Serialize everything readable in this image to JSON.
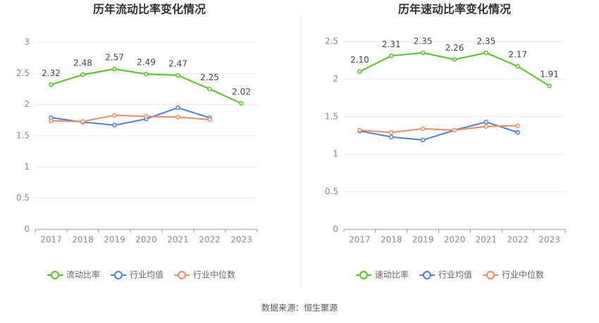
{
  "chart_data": [
    {
      "type": "line",
      "title": "历年流动比率变化情况",
      "categories": [
        "2017",
        "2018",
        "2019",
        "2020",
        "2021",
        "2022",
        "2023"
      ],
      "ylim": [
        0,
        3
      ],
      "yticks": [
        0,
        0.5,
        1,
        1.5,
        2,
        2.5,
        3
      ],
      "grid": true,
      "series": [
        {
          "name": "流动比率",
          "color": "#52c41a",
          "show_labels": true,
          "values": [
            2.32,
            2.48,
            2.57,
            2.49,
            2.47,
            2.25,
            2.02
          ]
        },
        {
          "name": "行业均值",
          "color": "#4a7fe0",
          "values": [
            1.79,
            1.72,
            1.67,
            1.77,
            1.95,
            1.79,
            null
          ]
        },
        {
          "name": "行业中位数",
          "color": "#f08a5d",
          "values": [
            1.74,
            1.73,
            1.83,
            1.81,
            1.8,
            1.76,
            null
          ]
        }
      ]
    },
    {
      "type": "line",
      "title": "历年速动比率变化情况",
      "categories": [
        "2017",
        "2018",
        "2019",
        "2020",
        "2021",
        "2022",
        "2023"
      ],
      "ylim": [
        0,
        2.5
      ],
      "yticks": [
        0,
        0.5,
        1,
        1.5,
        2,
        2.5
      ],
      "grid": true,
      "series": [
        {
          "name": "速动比率",
          "color": "#52c41a",
          "values": [
            2.1,
            2.31,
            2.35,
            2.26,
            2.35,
            2.17,
            1.91
          ],
          "value_labels": [
            "2.10",
            "2.31",
            "2.35",
            "2.26",
            "2.35",
            "2.17",
            "1.91"
          ]
        },
        {
          "name": "行业均值",
          "color": "#4a7fe0",
          "values": [
            1.31,
            1.23,
            1.19,
            1.32,
            1.43,
            1.29,
            null
          ]
        },
        {
          "name": "行业中位数",
          "color": "#f08a5d",
          "values": [
            1.32,
            1.29,
            1.34,
            1.32,
            1.37,
            1.38,
            null
          ]
        }
      ]
    }
  ],
  "source": "数据来源：恒生聚源"
}
